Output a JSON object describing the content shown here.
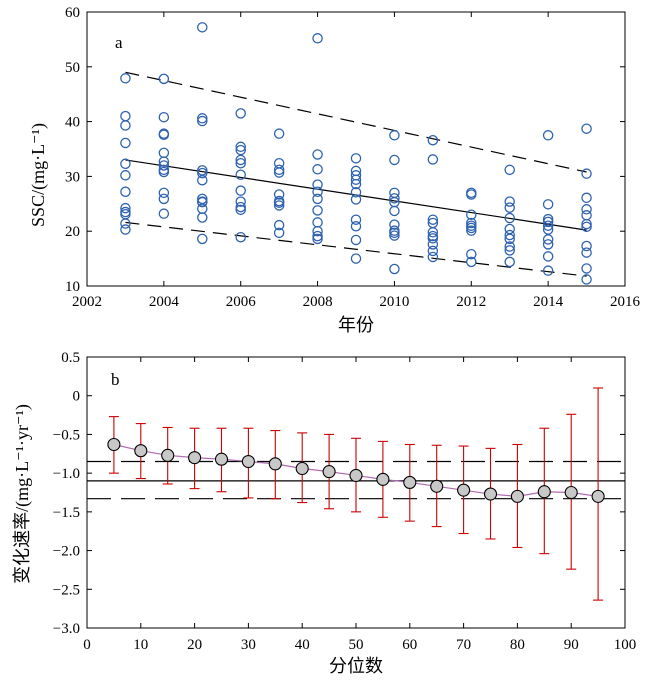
{
  "chart_data": [
    {
      "type": "scatter",
      "panel_label": "a",
      "xlabel": "年份",
      "ylabel": "SSC/(mg·L⁻¹)",
      "xlim": [
        2002,
        2016
      ],
      "ylim": [
        10,
        60
      ],
      "xticks": [
        2002,
        2004,
        2006,
        2008,
        2010,
        2012,
        2014,
        2016
      ],
      "yticks": [
        10,
        20,
        30,
        40,
        50,
        60
      ],
      "marker_color": "#2e62b0",
      "points": [
        {
          "year": 2003,
          "ssc": [
            47.9,
            41.0,
            39.3,
            36.1,
            32.3,
            30.2,
            27.2,
            24.2,
            23.5,
            23.1,
            21.4,
            20.3
          ]
        },
        {
          "year": 2004,
          "ssc": [
            47.8,
            40.8,
            37.8,
            37.6,
            34.3,
            32.7,
            32.0,
            31.2,
            30.8,
            27.0,
            25.9,
            23.2
          ]
        },
        {
          "year": 2005,
          "ssc": [
            57.2,
            40.6,
            40.1,
            31.1,
            30.6,
            29.3,
            25.9,
            25.4,
            25.3,
            24.1,
            22.5,
            18.6
          ]
        },
        {
          "year": 2006,
          "ssc": [
            41.5,
            35.4,
            34.8,
            33.0,
            32.4,
            30.3,
            27.4,
            25.4,
            24.4,
            23.9,
            18.9
          ]
        },
        {
          "year": 2007,
          "ssc": [
            37.8,
            32.4,
            31.2,
            30.7,
            26.7,
            25.5,
            25.2,
            24.7,
            21.1,
            19.7
          ]
        },
        {
          "year": 2008,
          "ssc": [
            55.2,
            34.0,
            31.3,
            28.5,
            27.2,
            25.9,
            23.8,
            21.6,
            20.0,
            19.1,
            18.6
          ]
        },
        {
          "year": 2009,
          "ssc": [
            33.3,
            31.0,
            30.2,
            29.4,
            28.6,
            27.1,
            25.8,
            22.1,
            20.9,
            18.4,
            15.0
          ]
        },
        {
          "year": 2010,
          "ssc": [
            37.5,
            33.0,
            27.0,
            26.0,
            25.3,
            23.7,
            21.2,
            20.1,
            19.7,
            19.2,
            13.1
          ]
        },
        {
          "year": 2011,
          "ssc": [
            36.6,
            33.1,
            22.1,
            21.5,
            19.8,
            19.1,
            18.7,
            17.6,
            16.4,
            15.3
          ]
        },
        {
          "year": 2012,
          "ssc": [
            27.0,
            26.7,
            23.0,
            21.5,
            21.0,
            20.6,
            20.1,
            15.8,
            14.4
          ]
        },
        {
          "year": 2013,
          "ssc": [
            31.2,
            25.4,
            24.3,
            22.4,
            20.4,
            19.3,
            18.6,
            17.2,
            16.5,
            14.4
          ]
        },
        {
          "year": 2014,
          "ssc": [
            37.5,
            24.9,
            22.2,
            21.7,
            21.0,
            20.3,
            18.5,
            17.6,
            15.4,
            12.8
          ]
        },
        {
          "year": 2015,
          "ssc": [
            38.7,
            30.5,
            26.1,
            24.0,
            22.9,
            21.3,
            20.8,
            17.3,
            16.1,
            13.2,
            11.2
          ]
        }
      ],
      "trend_lines": [
        {
          "style": "dashed",
          "from": [
            2003,
            49.0
          ],
          "to": [
            2015,
            30.8
          ]
        },
        {
          "style": "solid",
          "from": [
            2003,
            33.0
          ],
          "to": [
            2015,
            20.2
          ]
        },
        {
          "style": "dashed",
          "from": [
            2003,
            21.6
          ],
          "to": [
            2015,
            11.8
          ]
        }
      ]
    },
    {
      "type": "line",
      "panel_label": "b",
      "xlabel": "分位数",
      "ylabel": "变化速率/(mg·L⁻¹·yr⁻¹)",
      "xlim": [
        0,
        100
      ],
      "ylim": [
        -3.0,
        0.5
      ],
      "xticks": [
        0,
        10,
        20,
        30,
        40,
        50,
        60,
        70,
        80,
        90,
        100
      ],
      "yticks": [
        0.5,
        0,
        -0.5,
        -1.0,
        -1.5,
        -2.0,
        -2.5,
        -3.0
      ],
      "line_color": "#b06ab0",
      "marker_fill": "#c8c8c8",
      "errorbar_color": "#cc0000",
      "x": [
        5,
        10,
        15,
        20,
        25,
        30,
        35,
        40,
        45,
        50,
        55,
        60,
        65,
        70,
        75,
        80,
        85,
        90,
        95
      ],
      "y": [
        -0.63,
        -0.71,
        -0.77,
        -0.8,
        -0.82,
        -0.85,
        -0.88,
        -0.94,
        -0.98,
        -1.03,
        -1.08,
        -1.12,
        -1.17,
        -1.22,
        -1.27,
        -1.3,
        -1.24,
        -1.25,
        -1.3
      ],
      "err_low": [
        -1.0,
        -1.07,
        -1.14,
        -1.2,
        -1.24,
        -1.32,
        -1.33,
        -1.38,
        -1.46,
        -1.5,
        -1.57,
        -1.62,
        -1.69,
        -1.78,
        -1.85,
        -1.96,
        -2.04,
        -2.24,
        -2.64
      ],
      "err_high": [
        -0.27,
        -0.36,
        -0.41,
        -0.42,
        -0.42,
        -0.42,
        -0.45,
        -0.48,
        -0.5,
        -0.55,
        -0.59,
        -0.63,
        -0.64,
        -0.65,
        -0.68,
        -0.63,
        -0.42,
        -0.24,
        0.1
      ],
      "reference_lines": [
        {
          "style": "dashed",
          "y": -0.85
        },
        {
          "style": "solid",
          "y": -1.1
        },
        {
          "style": "dashed",
          "y": -1.33
        }
      ]
    }
  ]
}
